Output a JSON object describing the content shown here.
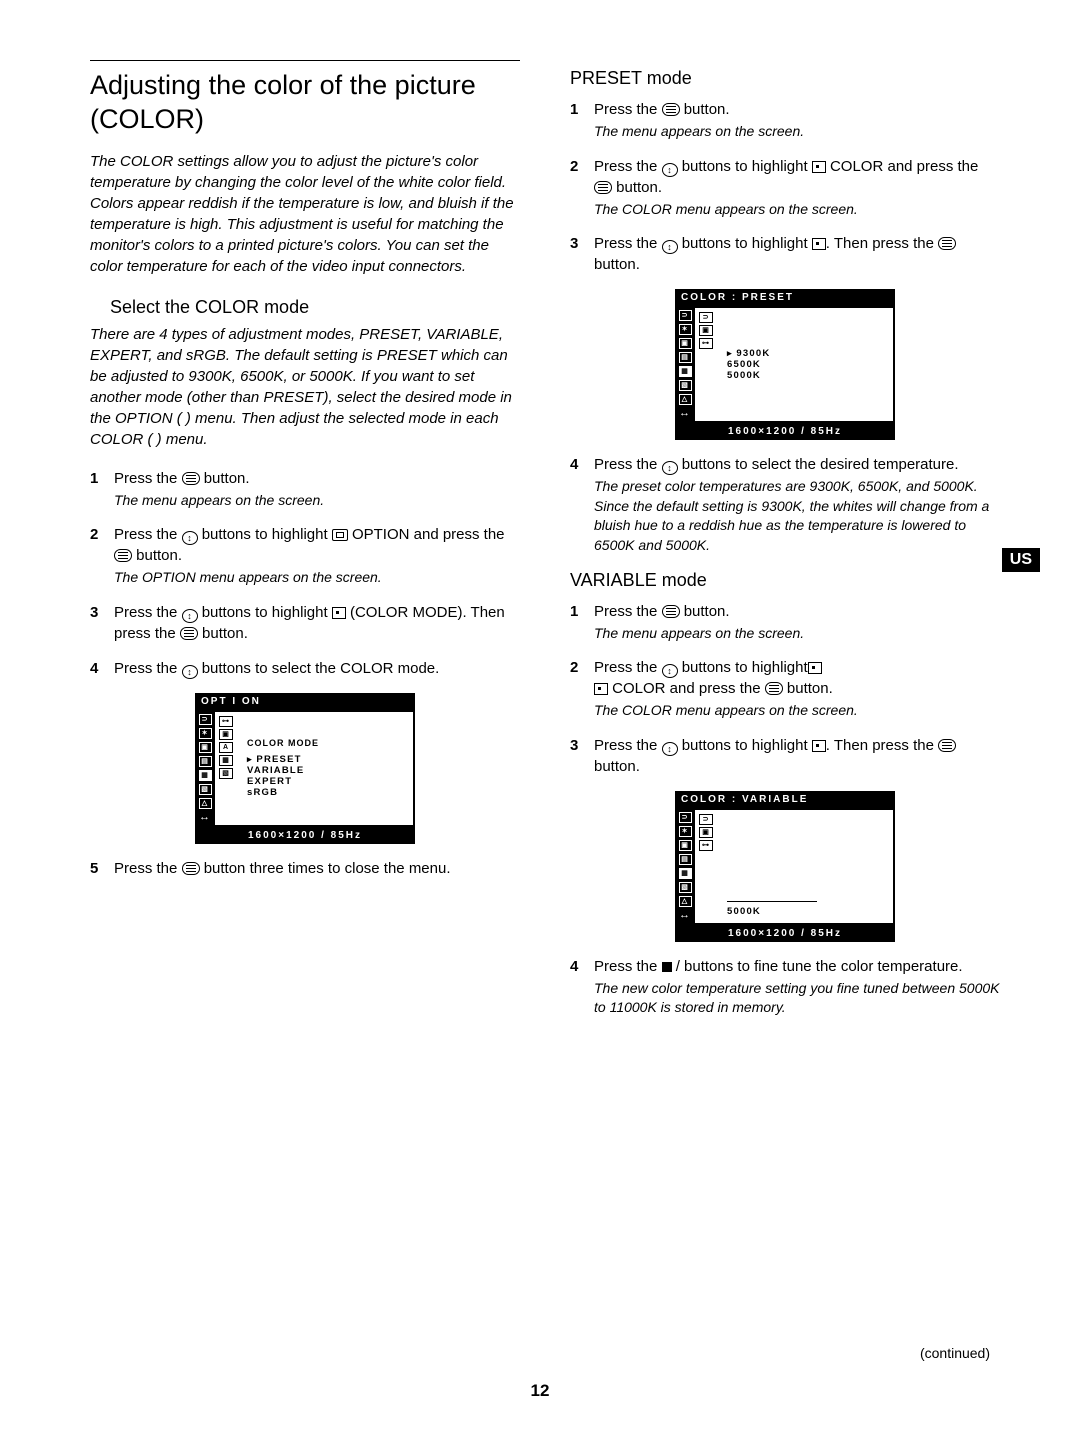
{
  "page_number": "12",
  "continued": "(continued)",
  "us_badge": "US",
  "left": {
    "title": "Adjusting the color of the picture (COLOR)",
    "intro": "The COLOR settings allow you to adjust the picture's color temperature by changing the color level of the white color field. Colors appear reddish if the temperature is low, and bluish if the temperature is high. This adjustment is useful for matching the monitor's colors to a printed picture's colors.\nYou can set the color temperature for each of the video input connectors.",
    "h2": "Select the COLOR mode",
    "h2_note": "There are 4 types of adjustment modes, PRESET, VARIABLE, EXPERT, and sRGB. The default setting is PRESET which can be adjusted to 9300K, 6500K, or 5000K.\nIf you want to set another mode (other than PRESET), select the desired mode in the OPTION (  ) menu. Then adjust the selected mode in each COLOR (  ) menu.",
    "steps": [
      {
        "n": "1",
        "text": "Press the ",
        "post": " button.",
        "sub": "The menu appears on the screen.",
        "icon": "menu"
      },
      {
        "n": "2",
        "text": "Press the ",
        "mid": " buttons to highlight ",
        "post": " OPTION and press the ",
        "post2": " button.",
        "sub": "The OPTION menu appears on the screen.",
        "icon": "ud",
        "icon2": "option",
        "icon3": "menu"
      },
      {
        "n": "3",
        "text": "Press the ",
        "mid": " buttons to highlight ",
        "post": " (COLOR MODE). Then press the ",
        "post2": " button.",
        "icon": "ud",
        "icon2": "color",
        "icon3": "menu"
      },
      {
        "n": "4",
        "text": "Press the ",
        "post": " buttons to select the COLOR mode.",
        "icon": "ud"
      },
      {
        "n": "5",
        "text": "Press the ",
        "post": " button three times to close the menu.",
        "icon": "menu"
      }
    ],
    "osd": {
      "title": "OPT I ON",
      "content_title": "COLOR  MODE",
      "items": [
        "PRESET",
        "VARIABLE",
        "EXPERT",
        "sRGB"
      ],
      "selected_index": 0,
      "footer": "1600×1200 /  85Hz"
    }
  },
  "right": {
    "h3a": "PRESET mode",
    "preset_steps": [
      {
        "n": "1",
        "text": "Press the ",
        "post": " button.",
        "sub": "The menu appears on the screen.",
        "icon": "menu"
      },
      {
        "n": "2",
        "text": "Press the ",
        "mid": " buttons to highlight ",
        "post": " COLOR and press the ",
        "post2": " button.",
        "sub": "The COLOR menu appears on the screen.",
        "icon": "ud",
        "icon2": "color",
        "icon3": "menu"
      },
      {
        "n": "3",
        "text": "Press the ",
        "mid": " buttons to highlight ",
        "post": ". Then press the ",
        "post2": " button.",
        "icon": "ud",
        "icon2": "color",
        "icon3": "menu"
      },
      {
        "n": "4",
        "text": "Press the ",
        "post": " buttons to select the desired temperature.",
        "sub": "The preset color temperatures are 9300K, 6500K, and 5000K. Since the default setting is 9300K, the whites will change from a bluish hue to a reddish hue as the temperature is lowered to 6500K and 5000K.",
        "icon": "ud"
      }
    ],
    "osd_preset": {
      "title": "COLOR    : PRESET",
      "items": [
        "9300K",
        "6500K",
        "5000K"
      ],
      "selected_index": 0,
      "footer": "1600×1200 /  85Hz"
    },
    "h3b": "VARIABLE mode",
    "variable_steps": [
      {
        "n": "1",
        "text": "Press the ",
        "post": " button.",
        "sub": "The menu appears on the screen.",
        "icon": "menu"
      },
      {
        "n": "2",
        "text": "Press the ",
        "mid": " buttons to highlight",
        "line2": " COLOR and press the ",
        "post2": " button.",
        "sub": "The COLOR menu appears on the screen.",
        "icon": "ud",
        "icon2": "color",
        "icon3": "menu"
      },
      {
        "n": "3",
        "text": "Press the ",
        "mid": " buttons to highlight ",
        "post": ". Then press the ",
        "post2": " button.",
        "icon": "ud",
        "icon2": "color",
        "icon3": "menu"
      },
      {
        "n": "4",
        "text": "Press the ",
        "mid": " / ",
        "post": " buttons to fine tune the color temperature.",
        "sub": "The new color temperature setting you fine tuned between 5000K to 11000K is stored in memory.",
        "icon": "left"
      }
    ],
    "osd_variable": {
      "title": "COLOR    : VARIABLE",
      "value": "5000K",
      "footer": "1600×1200 /  85Hz"
    }
  }
}
